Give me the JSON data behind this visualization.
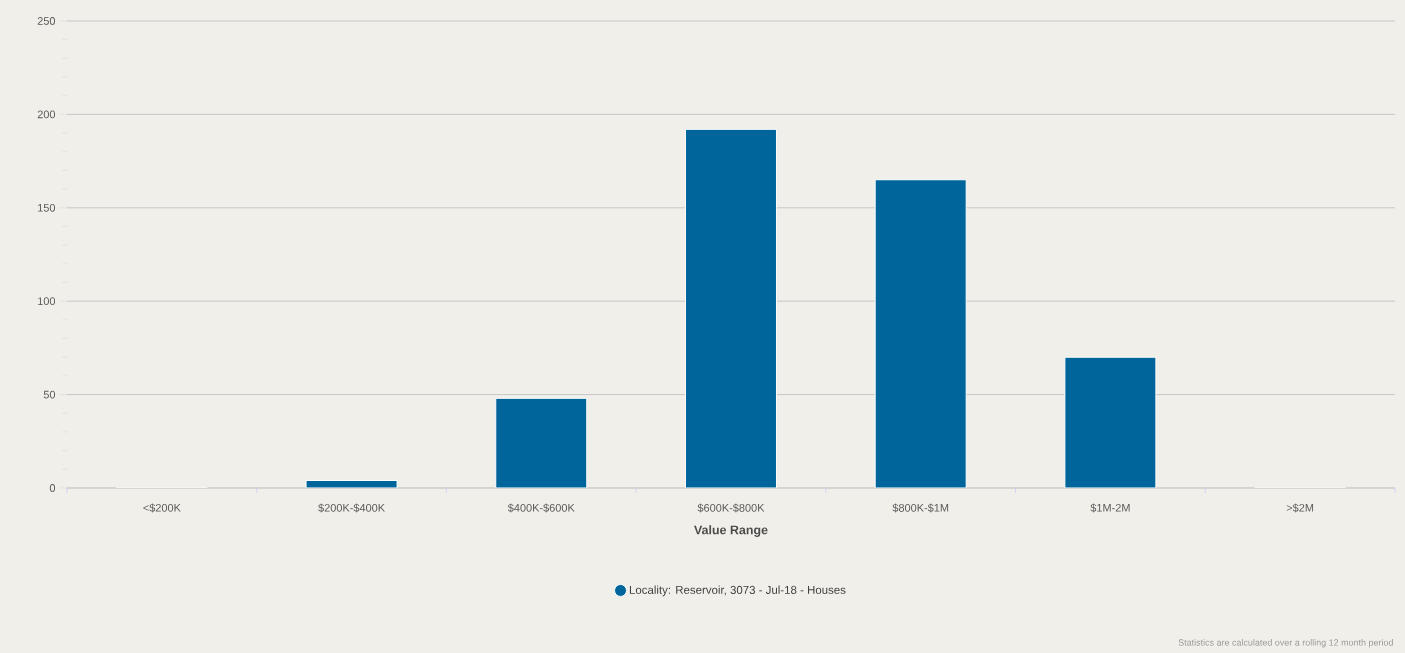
{
  "chart_data": {
    "type": "bar",
    "xlabel": "Value Range",
    "categories": [
      "<$200K",
      "$200K-$400K",
      "$400K-$600K",
      "$600K-$800K",
      "$800K-$1M",
      "$1M-2M",
      ">$2M"
    ],
    "series": [
      {
        "name": "Locality: Reservoir, 3073 - Jul-18 - Houses",
        "color": "#00659a",
        "values": [
          0,
          4,
          48,
          192,
          165,
          70,
          0
        ]
      }
    ],
    "ylim": [
      0,
      250
    ],
    "yticks": [
      0,
      50,
      100,
      150,
      200,
      250
    ],
    "grid": "y",
    "legend": "bottom",
    "annotations": [
      "Statistics are calculated over a rolling 12 month period"
    ]
  }
}
